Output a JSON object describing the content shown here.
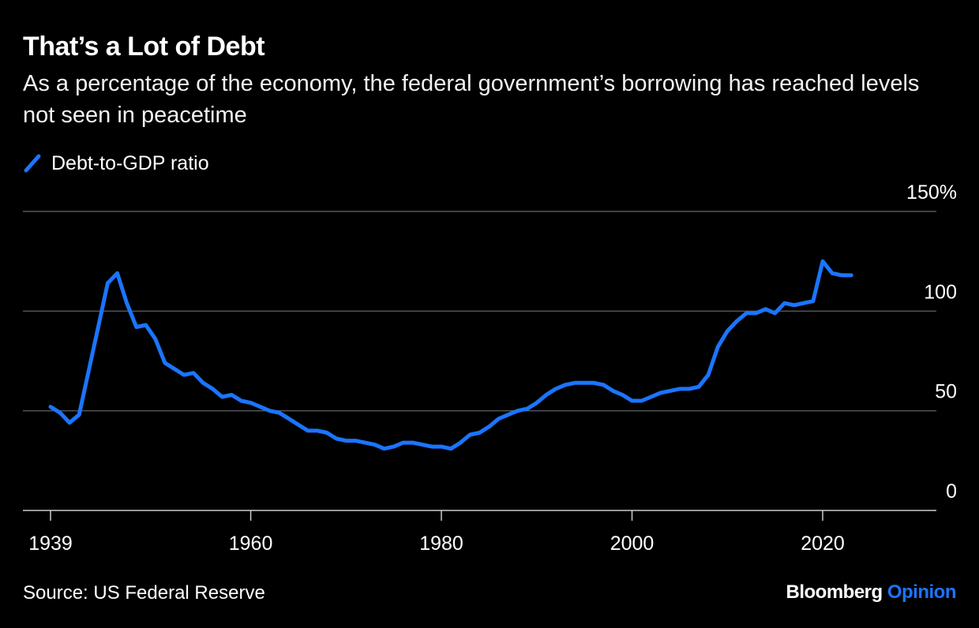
{
  "title": "That’s a Lot of Debt",
  "subtitle": "As a percentage of the economy, the federal government’s borrowing has reached levels not seen in peacetime",
  "source": "Source: US Federal Reserve",
  "brand": {
    "part1": "Bloomberg",
    "part2": "Opinion",
    "accent": "#1a75ff"
  },
  "colors": {
    "background": "#000000",
    "line": "#1a75ff",
    "grid": "#555555",
    "text": "#ffffff"
  },
  "chart_data": {
    "type": "line",
    "title": "That’s a Lot of Debt",
    "xlabel": "",
    "ylabel": "",
    "legend_position": "top-left",
    "grid": true,
    "xlim": [
      1936,
      2032
    ],
    "ylim": [
      0,
      150
    ],
    "x_ticks": [
      {
        "value": 1939,
        "label": "1939"
      },
      {
        "value": 1960,
        "label": "1960"
      },
      {
        "value": 1980,
        "label": "1980"
      },
      {
        "value": 2000,
        "label": "2000"
      },
      {
        "value": 2020,
        "label": "2020"
      }
    ],
    "y_ticks": [
      {
        "value": 0,
        "label": "0"
      },
      {
        "value": 50,
        "label": "50"
      },
      {
        "value": 100,
        "label": "100"
      },
      {
        "value": 150,
        "label": "150%"
      }
    ],
    "series": [
      {
        "name": "Debt-to-GDP ratio",
        "color": "#1a75ff",
        "x": [
          1939,
          1940,
          1941,
          1942,
          1943,
          1944,
          1945,
          1946,
          1947,
          1948,
          1949,
          1950,
          1951,
          1952,
          1953,
          1954,
          1955,
          1956,
          1957,
          1958,
          1959,
          1960,
          1961,
          1962,
          1963,
          1964,
          1965,
          1966,
          1967,
          1968,
          1969,
          1970,
          1971,
          1972,
          1973,
          1974,
          1975,
          1976,
          1977,
          1978,
          1979,
          1980,
          1981,
          1982,
          1983,
          1984,
          1985,
          1986,
          1987,
          1988,
          1989,
          1990,
          1991,
          1992,
          1993,
          1994,
          1995,
          1996,
          1997,
          1998,
          1999,
          2000,
          2001,
          2002,
          2003,
          2004,
          2005,
          2006,
          2007,
          2008,
          2009,
          2010,
          2011,
          2012,
          2013,
          2014,
          2015,
          2016,
          2017,
          2018,
          2019,
          2020,
          2021,
          2022,
          2023
        ],
        "y": [
          52,
          49,
          44,
          48,
          70,
          92,
          114,
          119,
          104,
          92,
          93,
          86,
          74,
          71,
          68,
          69,
          64,
          61,
          57,
          58,
          55,
          54,
          52,
          50,
          49,
          46,
          43,
          40,
          40,
          39,
          36,
          35,
          35,
          34,
          33,
          31,
          32,
          34,
          34,
          33,
          32,
          32,
          31,
          34,
          38,
          39,
          42,
          46,
          48,
          50,
          51,
          54,
          58,
          61,
          63,
          64,
          64,
          64,
          63,
          60,
          58,
          55,
          55,
          57,
          59,
          60,
          61,
          61,
          62,
          68,
          82,
          90,
          95,
          99,
          99,
          101,
          99,
          104,
          103,
          104,
          105,
          125,
          119,
          118,
          118
        ]
      }
    ]
  }
}
